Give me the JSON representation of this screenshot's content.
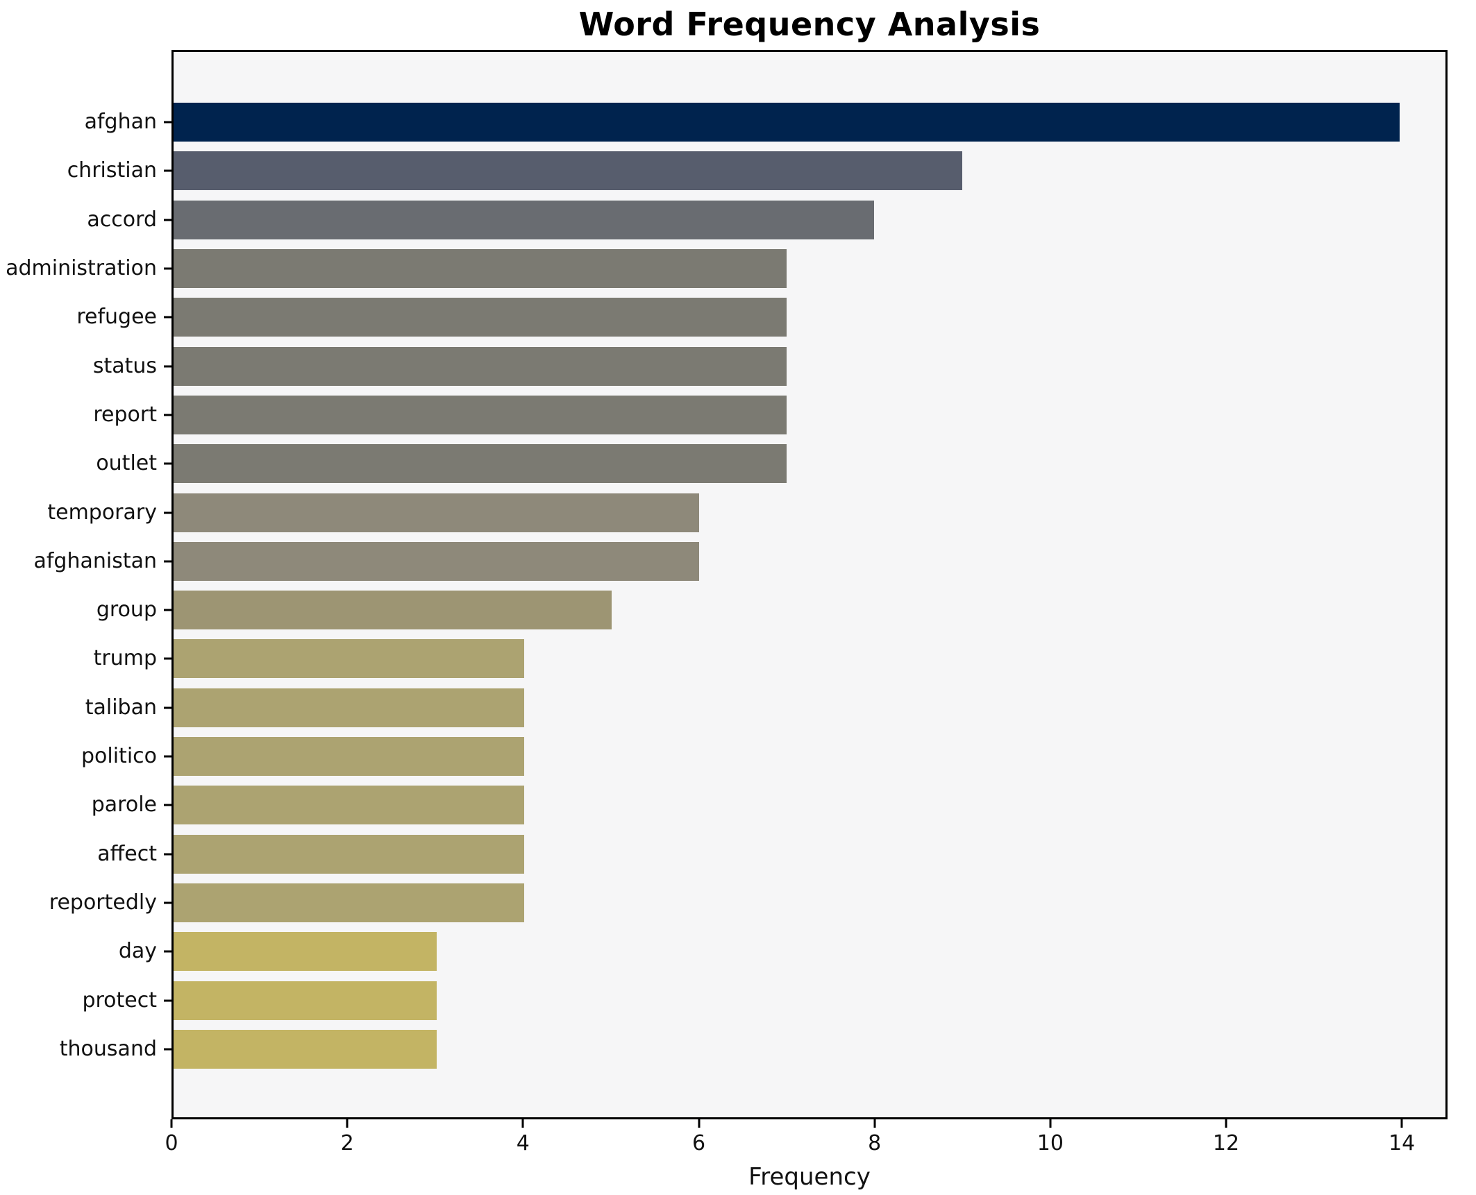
{
  "title": "Word Frequency Analysis",
  "chart_data": {
    "type": "bar",
    "orientation": "horizontal",
    "title": "Word Frequency Analysis",
    "xlabel": "Frequency",
    "ylabel": "",
    "categories": [
      "afghan",
      "christian",
      "accord",
      "administration",
      "refugee",
      "status",
      "report",
      "outlet",
      "temporary",
      "afghanistan",
      "group",
      "trump",
      "taliban",
      "politico",
      "parole",
      "affect",
      "reportedly",
      "day",
      "protect",
      "thousand"
    ],
    "values": [
      14,
      9,
      8,
      7,
      7,
      7,
      7,
      7,
      6,
      6,
      5,
      4,
      4,
      4,
      4,
      4,
      4,
      3,
      3,
      3
    ],
    "bar_colors": [
      "#00234e",
      "#575d6d",
      "#696c71",
      "#7b7a72",
      "#7b7a72",
      "#7b7a72",
      "#7b7a72",
      "#7b7a72",
      "#8e897a",
      "#8e897a",
      "#9d9573",
      "#aca371",
      "#aca371",
      "#aca371",
      "#aca371",
      "#aca371",
      "#aca371",
      "#c3b464",
      "#c3b464",
      "#c3b464"
    ],
    "xlim": [
      0,
      14.52
    ],
    "xticks": [
      0,
      2,
      4,
      6,
      8,
      10,
      12,
      14
    ],
    "grid": false,
    "legend": null,
    "plot_background": "#f6f6f7",
    "figure_background": "#ffffff",
    "spine_color": "#000000"
  }
}
